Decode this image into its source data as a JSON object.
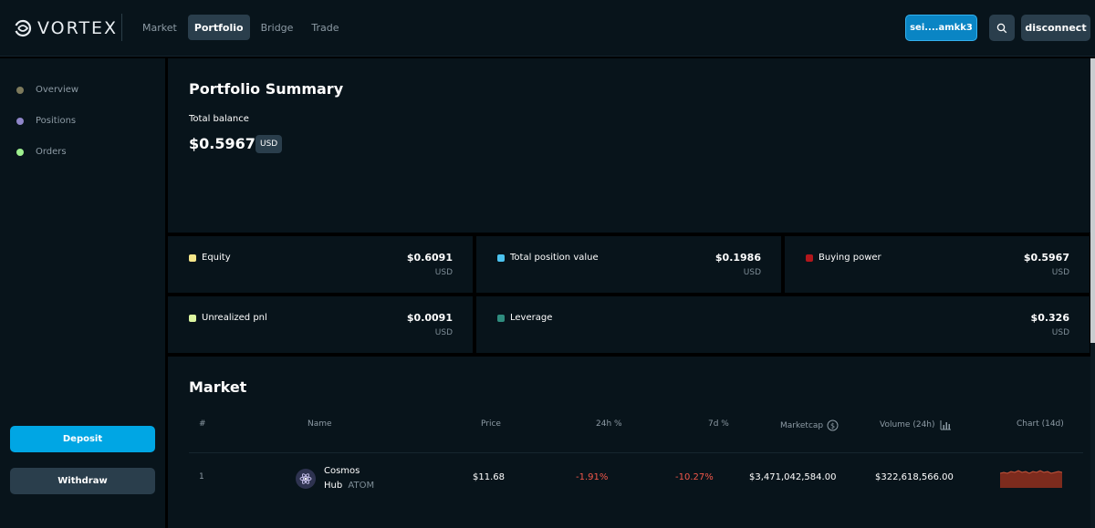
{
  "header": {
    "logo_text": "VORTEX",
    "nav": [
      {
        "label": "Market",
        "active": false
      },
      {
        "label": "Portfolio",
        "active": true
      },
      {
        "label": "Bridge",
        "active": false
      },
      {
        "label": "Trade",
        "active": false
      }
    ],
    "wallet_label": "sei....amkk3",
    "search_icon": "search-icon",
    "disconnect_label": "disconnect"
  },
  "sidebar": {
    "items": [
      {
        "label": "Overview",
        "color": "#7d7a5c"
      },
      {
        "label": "Positions",
        "color": "#8f86c9"
      },
      {
        "label": "Orders",
        "color": "#9ef08f"
      }
    ],
    "deposit_label": "Deposit",
    "withdraw_label": "Withdraw"
  },
  "summary": {
    "title": "Portfolio Summary",
    "balance_label": "Total balance",
    "balance_value": "$0.5967",
    "balance_unit": "USD"
  },
  "stats": [
    {
      "label": "Equity",
      "value": "$0.6091",
      "unit": "USD",
      "color": "#f5e68a"
    },
    {
      "label": "Total position value",
      "value": "$0.1986",
      "unit": "USD",
      "color": "#4cc3ef"
    },
    {
      "label": "Buying power",
      "value": "$0.5967",
      "unit": "USD",
      "color": "#b3171c"
    },
    {
      "label": "Unrealized pnl",
      "value": "$0.0091",
      "unit": "USD",
      "color": "#dcf5a0"
    },
    {
      "label": "Leverage",
      "value": "$0.326",
      "unit": "USD",
      "color": "#2f8c7e"
    }
  ],
  "market": {
    "title": "Market",
    "headers": {
      "num": "#",
      "name": "Name",
      "price": "Price",
      "change_24h": "24h %",
      "change_7d": "7d %",
      "marketcap": "Marketcap",
      "volume": "Volume (24h)",
      "chart": "Chart (14d)"
    },
    "rows": [
      {
        "num": "1",
        "name_line1": "Cosmos",
        "name_line2": "Hub",
        "symbol": "ATOM",
        "price": "$11.68",
        "change_24h": "-1.91%",
        "change_7d": "-10.27%",
        "marketcap": "$3,471,042,584.00",
        "volume": "$322,618,566.00"
      }
    ]
  },
  "colors": {
    "accent": "#00a6e4",
    "negative": "#f2574a",
    "panel": "#08141b",
    "button": "#2a3e4c"
  }
}
